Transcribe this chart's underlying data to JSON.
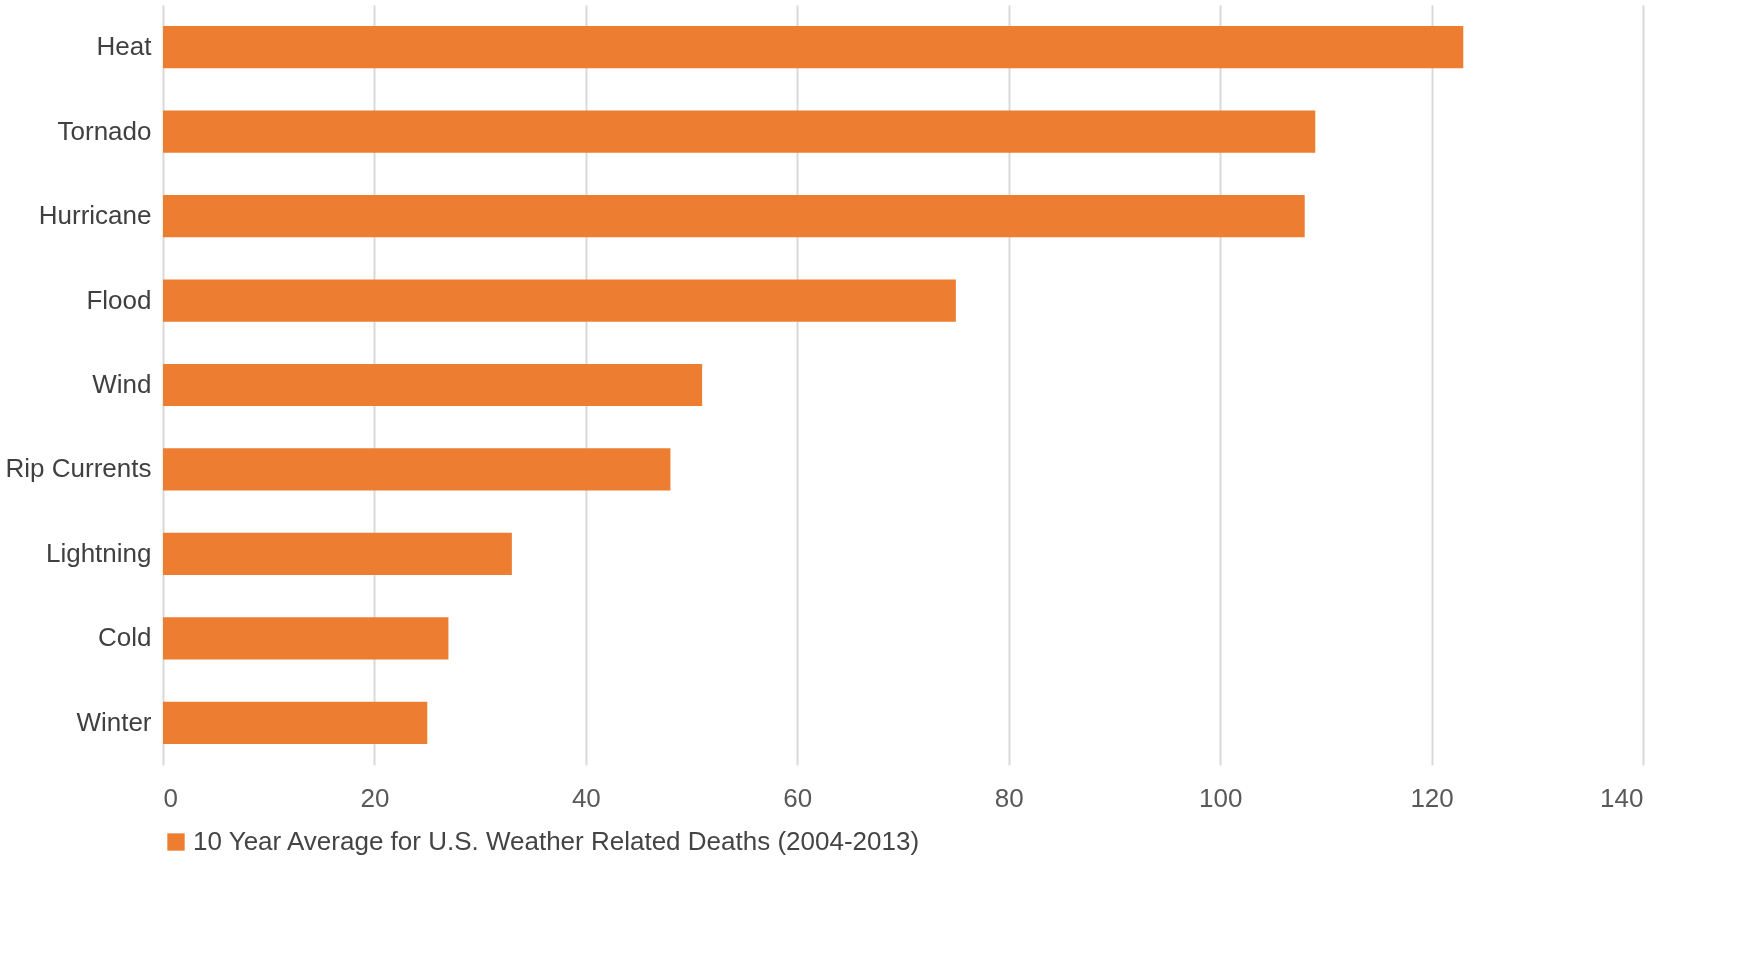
{
  "chart_data": {
    "type": "bar",
    "orientation": "horizontal",
    "categories": [
      "Heat",
      "Tornado",
      "Hurricane",
      "Flood",
      "Wind",
      "Rip Currents",
      "Lightning",
      "Cold",
      "Winter"
    ],
    "series": [
      {
        "name": "10 Year Average for U.S. Weather Related Deaths (2004-2013)",
        "color": "#ed7d31",
        "values": [
          123,
          109,
          108,
          75,
          51,
          48,
          33,
          27,
          25
        ]
      }
    ],
    "xlim": [
      0,
      140
    ],
    "xticks": [
      0,
      20,
      40,
      60,
      80,
      100,
      120,
      140
    ],
    "grid": "x",
    "legend": "bottom"
  }
}
